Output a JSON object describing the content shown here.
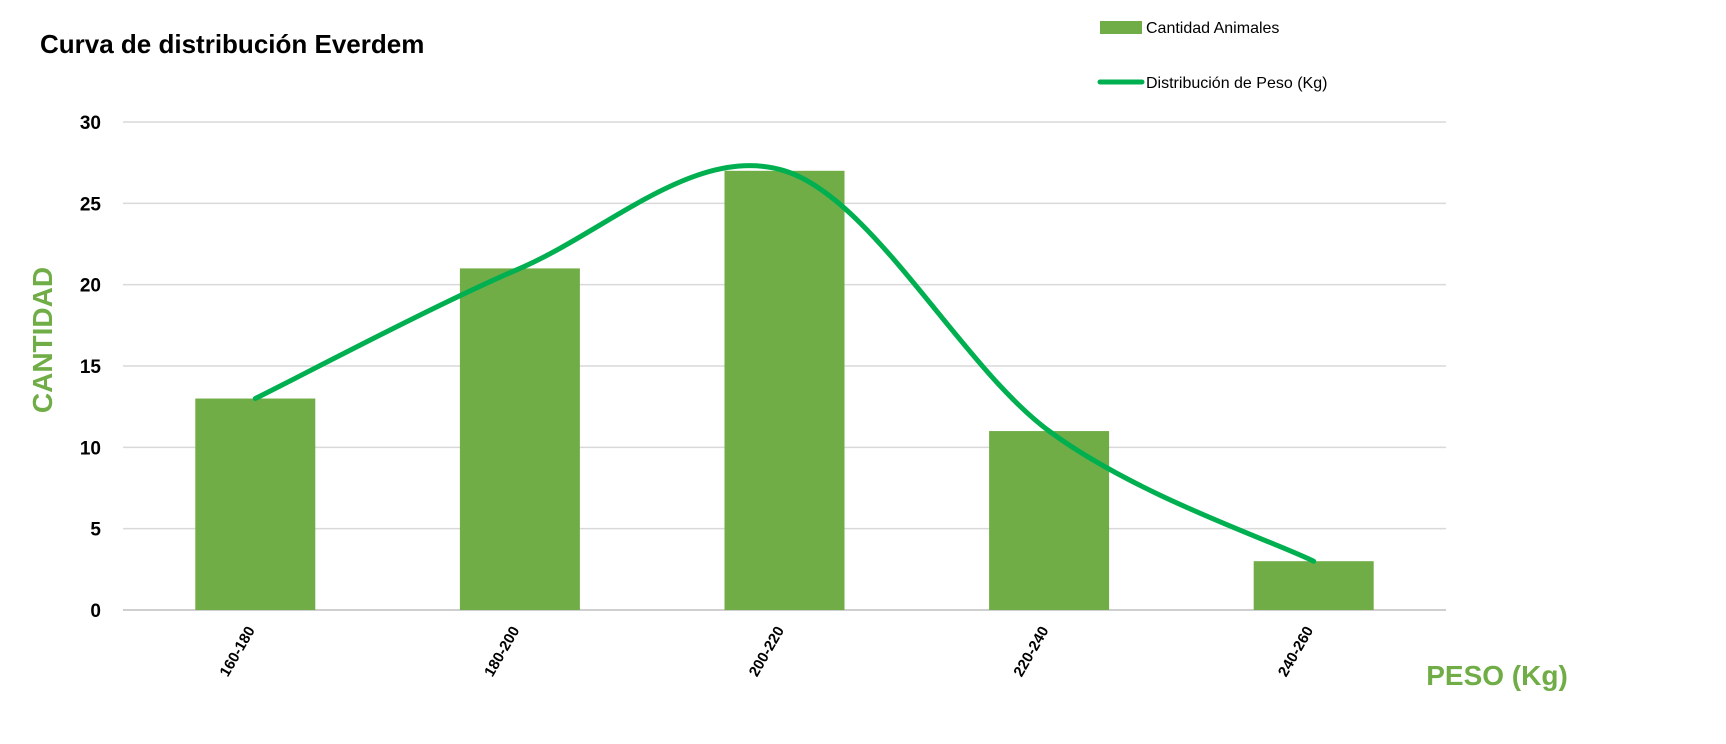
{
  "chart_data": {
    "type": "bar",
    "title": "Curva de distribución Everdem",
    "xlabel": "PESO (Kg)",
    "ylabel": "CANTIDAD",
    "categories": [
      "160-180",
      "180-200",
      "200-220",
      "220-240",
      "240-260"
    ],
    "series": [
      {
        "name": "Cantidad Animales",
        "type": "bar",
        "values": [
          13,
          21,
          27,
          11,
          3
        ]
      },
      {
        "name": "Distribución de Peso (Kg)",
        "type": "line",
        "smooth": true,
        "values": [
          13,
          21,
          27,
          11,
          3
        ]
      }
    ],
    "ylim": [
      0,
      30
    ],
    "yticks": [
      0,
      5,
      10,
      15,
      20,
      25,
      30
    ],
    "grid": true,
    "legend_position": "top-right",
    "colors": {
      "bar": "#70AD47",
      "line": "#00B050",
      "axis_title": "#70AD47",
      "grid": "#d9d9d9"
    }
  }
}
